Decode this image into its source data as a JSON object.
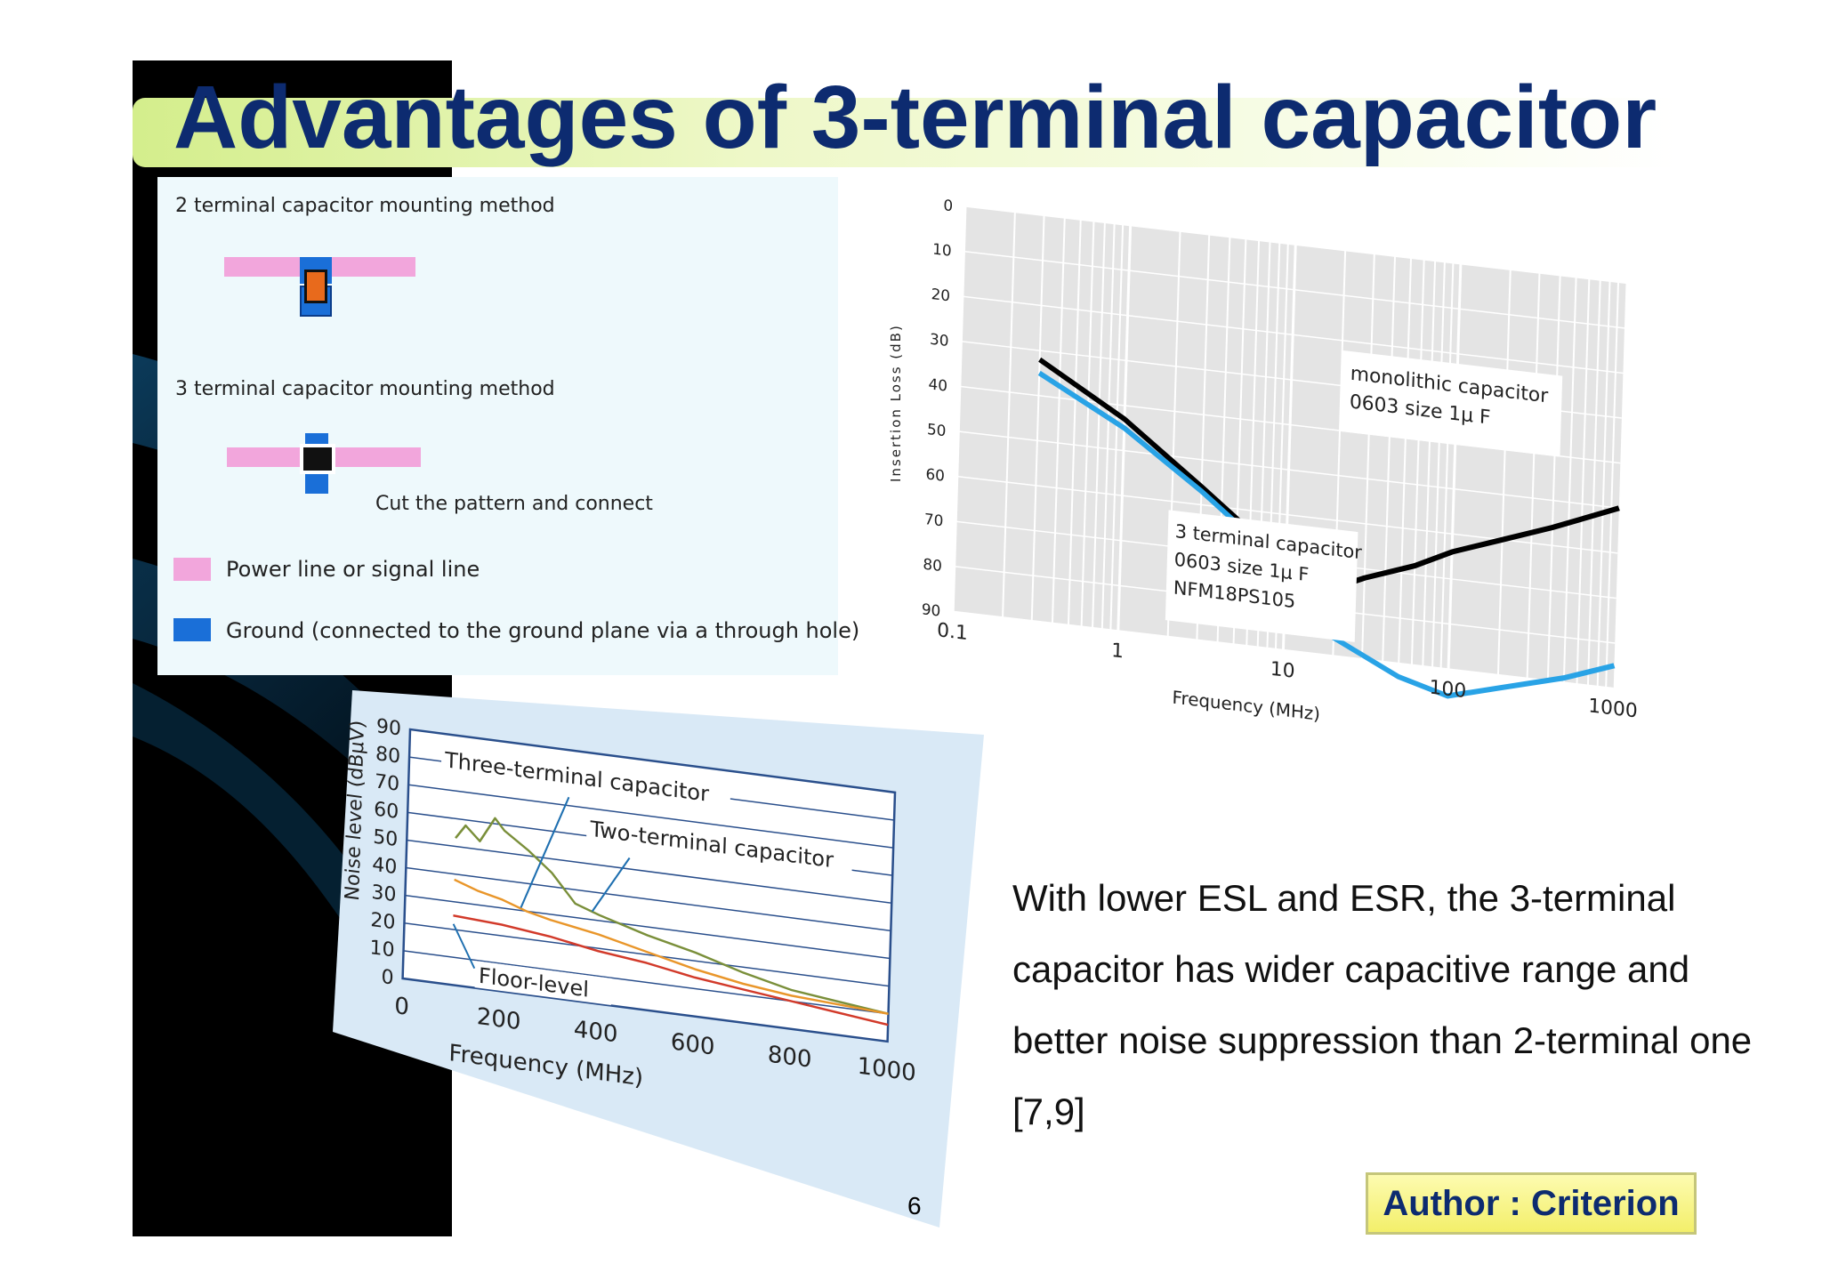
{
  "slide": {
    "title": "Advantages of 3-terminal capacitor",
    "summary": "With lower ESL and ESR, the 3-terminal capacitor has wider capacitive range and  better noise suppression than 2-terminal one [7,9]",
    "author": "Author : Criterion",
    "page_number": "6"
  },
  "mounting_diagram": {
    "two_terminal_title": "2 terminal capacitor mounting method",
    "three_terminal_title": "3 terminal capacitor mounting method",
    "cut_note": "Cut the pattern and connect",
    "legend_power": "Power line or signal line",
    "legend_ground": "Ground (connected to the ground plane via a through hole)",
    "colors": {
      "power": "#f2a6dc",
      "ground": "#1a6fd8",
      "body": "#e86a1c",
      "background": "#eef9fc"
    }
  },
  "chart_data": [
    {
      "type": "line",
      "ylabel": "Insertion Loss (dB)",
      "xlabel": "Frequency (MHz)",
      "x_scale": "log",
      "xlim": [
        0.1,
        1000
      ],
      "ylim": [
        0,
        90
      ],
      "x_ticks": [
        "0.1",
        "1",
        "10",
        "100",
        "1000"
      ],
      "y_ticks": [
        "0",
        "10",
        "20",
        "30",
        "40",
        "50",
        "60",
        "70",
        "80",
        "90"
      ],
      "annotations": [
        {
          "lines": [
            "monolithic capacitor",
            "0603 size 1μ F"
          ]
        },
        {
          "lines": [
            "3 terminal capacitor",
            "0603 size   1μ F",
            "NFM18PS105"
          ]
        }
      ],
      "series": [
        {
          "color": "#000000",
          "x": [
            0.3,
            1,
            3,
            8,
            10,
            15,
            30,
            60,
            100,
            200,
            400,
            1000
          ],
          "y": [
            32,
            43,
            56,
            68,
            79,
            77,
            72,
            68,
            64,
            60,
            56,
            50
          ]
        },
        {
          "color": "#29a3e6",
          "x": [
            0.3,
            1,
            3,
            8,
            10,
            20,
            50,
            100,
            200,
            500,
            1000
          ],
          "y": [
            35,
            45,
            57,
            69,
            79,
            86,
            93,
            96,
            93,
            89,
            85
          ]
        }
      ]
    },
    {
      "type": "line",
      "ylabel": "Noise level (dBμV)",
      "xlabel": "Frequency (MHz)",
      "xlim": [
        0,
        1000
      ],
      "ylim": [
        0,
        90
      ],
      "x_ticks": [
        "0",
        "200",
        "400",
        "600",
        "800",
        "1000"
      ],
      "y_ticks": [
        "0",
        "10",
        "20",
        "30",
        "40",
        "50",
        "60",
        "70",
        "80",
        "90"
      ],
      "annotations": [
        {
          "text": "Three-terminal capacitor"
        },
        {
          "text": "Two-terminal capacitor"
        },
        {
          "text": "Floor-level"
        }
      ],
      "series": [
        {
          "color": "#7a8f3a",
          "x": [
            100,
            120,
            150,
            180,
            200,
            250,
            300,
            350,
            400,
            500,
            600,
            700,
            800,
            900,
            1000
          ],
          "y": [
            53,
            58,
            53,
            62,
            58,
            52,
            45,
            35,
            32,
            27,
            23,
            18,
            14,
            12,
            10
          ]
        },
        {
          "color": "#e9962a",
          "x": [
            100,
            150,
            200,
            250,
            300,
            400,
            500,
            600,
            700,
            800,
            900,
            1000
          ],
          "y": [
            38,
            35,
            33,
            30,
            28,
            25,
            21,
            17,
            14,
            12,
            11,
            10
          ]
        },
        {
          "color": "#d23a2a",
          "x": [
            100,
            200,
            300,
            400,
            500,
            600,
            700,
            800,
            900,
            1000
          ],
          "y": [
            25,
            24,
            22,
            19,
            17,
            14,
            12,
            10,
            8,
            6
          ]
        }
      ]
    }
  ]
}
